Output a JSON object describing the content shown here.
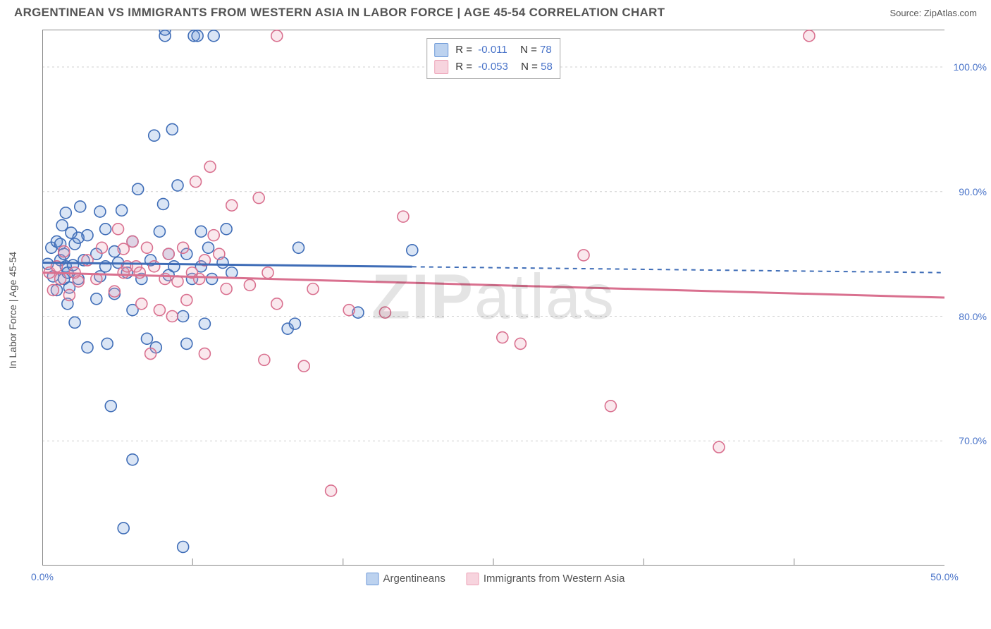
{
  "header": {
    "title": "ARGENTINEAN VS IMMIGRANTS FROM WESTERN ASIA IN LABOR FORCE | AGE 45-54 CORRELATION CHART",
    "source": "Source: ZipAtlas.com"
  },
  "chart": {
    "type": "scatter",
    "y_axis_label": "In Labor Force | Age 45-54",
    "background_color": "#ffffff",
    "grid_color": "#d0d0d0",
    "axis_line_color": "#888888",
    "label_color": "#4a74c9",
    "xlim": [
      0,
      50
    ],
    "ylim": [
      60,
      103
    ],
    "x_ticks": [
      0,
      50
    ],
    "x_tick_labels": [
      "0.0%",
      "50.0%"
    ],
    "x_minor_ticks": [
      8.33,
      16.67,
      25,
      33.33,
      41.67
    ],
    "y_ticks": [
      70,
      80,
      90,
      100
    ],
    "y_tick_labels": [
      "70.0%",
      "80.0%",
      "90.0%",
      "100.0%"
    ],
    "marker_radius": 8,
    "marker_stroke_width": 1.6,
    "marker_fill_opacity": 0.25,
    "trend_line_width": 3,
    "watermark": "ZIPatlas",
    "series": [
      {
        "name": "Argentineans",
        "color": "#6d99d8",
        "stroke": "#3f6db7",
        "trend": {
          "y_at_x0": 84.3,
          "y_at_x50": 83.5,
          "solid_until_x": 20.5
        },
        "points": [
          [
            0.3,
            84.2
          ],
          [
            0.5,
            85.5
          ],
          [
            0.6,
            83.2
          ],
          [
            0.8,
            86.0
          ],
          [
            0.8,
            82.1
          ],
          [
            1.0,
            84.5
          ],
          [
            1.0,
            85.8
          ],
          [
            1.1,
            87.3
          ],
          [
            1.2,
            83.0
          ],
          [
            1.2,
            85.0
          ],
          [
            1.3,
            84.0
          ],
          [
            1.3,
            88.3
          ],
          [
            1.4,
            83.5
          ],
          [
            1.4,
            81.0
          ],
          [
            1.5,
            82.3
          ],
          [
            1.6,
            86.7
          ],
          [
            1.7,
            84.1
          ],
          [
            1.8,
            85.8
          ],
          [
            1.8,
            79.5
          ],
          [
            2.0,
            86.3
          ],
          [
            2.0,
            83.0
          ],
          [
            2.1,
            88.8
          ],
          [
            2.3,
            84.5
          ],
          [
            2.5,
            77.5
          ],
          [
            2.5,
            86.5
          ],
          [
            3.0,
            81.4
          ],
          [
            3.0,
            85.0
          ],
          [
            3.2,
            88.4
          ],
          [
            3.2,
            83.2
          ],
          [
            3.5,
            84.0
          ],
          [
            3.5,
            87.0
          ],
          [
            3.6,
            77.8
          ],
          [
            3.8,
            72.8
          ],
          [
            4.0,
            85.2
          ],
          [
            4.0,
            81.8
          ],
          [
            4.2,
            84.3
          ],
          [
            4.4,
            88.5
          ],
          [
            4.5,
            63.0
          ],
          [
            4.7,
            83.5
          ],
          [
            5.0,
            68.5
          ],
          [
            5.0,
            80.5
          ],
          [
            5.0,
            86.0
          ],
          [
            5.3,
            90.2
          ],
          [
            5.5,
            83.0
          ],
          [
            5.8,
            78.2
          ],
          [
            6.0,
            84.5
          ],
          [
            6.2,
            94.5
          ],
          [
            6.3,
            77.5
          ],
          [
            6.5,
            86.8
          ],
          [
            6.7,
            89.0
          ],
          [
            6.8,
            102.5
          ],
          [
            6.8,
            103.0
          ],
          [
            7.0,
            83.3
          ],
          [
            7.0,
            85.0
          ],
          [
            7.2,
            95.0
          ],
          [
            7.3,
            84.0
          ],
          [
            7.5,
            90.5
          ],
          [
            7.8,
            80.0
          ],
          [
            7.8,
            61.5
          ],
          [
            8.0,
            85.0
          ],
          [
            8.0,
            77.8
          ],
          [
            8.3,
            83.0
          ],
          [
            8.4,
            102.5
          ],
          [
            8.6,
            102.5
          ],
          [
            8.8,
            84.0
          ],
          [
            8.8,
            86.8
          ],
          [
            9.0,
            79.4
          ],
          [
            9.2,
            85.5
          ],
          [
            9.4,
            83.0
          ],
          [
            9.5,
            102.5
          ],
          [
            10.0,
            84.3
          ],
          [
            10.2,
            87.0
          ],
          [
            10.5,
            83.5
          ],
          [
            13.6,
            79.0
          ],
          [
            14.0,
            79.4
          ],
          [
            14.2,
            85.5
          ],
          [
            17.5,
            80.3
          ],
          [
            20.5,
            85.3
          ]
        ]
      },
      {
        "name": "Immigrants from Western Asia",
        "color": "#eda3b8",
        "stroke": "#d9708f",
        "trend": {
          "y_at_x0": 83.5,
          "y_at_x50": 81.5,
          "solid_until_x": 50
        },
        "points": [
          [
            0.4,
            83.5
          ],
          [
            0.6,
            82.1
          ],
          [
            0.8,
            84.0
          ],
          [
            1.0,
            83.0
          ],
          [
            1.2,
            85.2
          ],
          [
            1.5,
            81.7
          ],
          [
            1.8,
            83.5
          ],
          [
            2.0,
            82.8
          ],
          [
            2.5,
            84.5
          ],
          [
            3.0,
            83.0
          ],
          [
            3.3,
            85.5
          ],
          [
            4.0,
            82.0
          ],
          [
            4.2,
            87.0
          ],
          [
            4.5,
            83.5
          ],
          [
            4.5,
            85.4
          ],
          [
            4.7,
            84.0
          ],
          [
            5.0,
            86.0
          ],
          [
            5.2,
            84.0
          ],
          [
            5.4,
            83.5
          ],
          [
            5.5,
            81.0
          ],
          [
            5.8,
            85.5
          ],
          [
            6.0,
            77.0
          ],
          [
            6.2,
            84.0
          ],
          [
            6.5,
            80.5
          ],
          [
            6.8,
            83.0
          ],
          [
            7.0,
            85.0
          ],
          [
            7.2,
            80.0
          ],
          [
            7.5,
            82.8
          ],
          [
            7.8,
            85.5
          ],
          [
            8.0,
            81.3
          ],
          [
            8.3,
            83.5
          ],
          [
            8.5,
            90.8
          ],
          [
            8.7,
            83.0
          ],
          [
            9.0,
            77.0
          ],
          [
            9.0,
            84.5
          ],
          [
            9.3,
            92.0
          ],
          [
            9.5,
            86.5
          ],
          [
            9.8,
            85.0
          ],
          [
            10.2,
            82.2
          ],
          [
            10.5,
            88.9
          ],
          [
            11.5,
            82.5
          ],
          [
            12.0,
            89.5
          ],
          [
            12.3,
            76.5
          ],
          [
            12.5,
            83.5
          ],
          [
            13.0,
            102.5
          ],
          [
            13.0,
            81.0
          ],
          [
            14.5,
            76.0
          ],
          [
            15.0,
            82.2
          ],
          [
            16.0,
            66.0
          ],
          [
            17.0,
            80.5
          ],
          [
            19.0,
            80.3
          ],
          [
            20.0,
            88.0
          ],
          [
            25.5,
            78.3
          ],
          [
            26.5,
            77.8
          ],
          [
            30.0,
            84.9
          ],
          [
            31.5,
            72.8
          ],
          [
            37.5,
            69.5
          ],
          [
            42.5,
            102.5
          ]
        ]
      }
    ],
    "legend_top": {
      "rows": [
        {
          "swatch_fill": "#bcd2ef",
          "swatch_stroke": "#6d99d8",
          "r": "-0.011",
          "n": "78"
        },
        {
          "swatch_fill": "#f7d4de",
          "swatch_stroke": "#eda3b8",
          "r": "-0.053",
          "n": "58"
        }
      ],
      "r_label": "R =",
      "n_label": "N ="
    },
    "legend_bottom": [
      {
        "swatch_fill": "#bcd2ef",
        "swatch_stroke": "#6d99d8",
        "label": "Argentineans"
      },
      {
        "swatch_fill": "#f7d4de",
        "swatch_stroke": "#eda3b8",
        "label": "Immigrants from Western Asia"
      }
    ]
  }
}
